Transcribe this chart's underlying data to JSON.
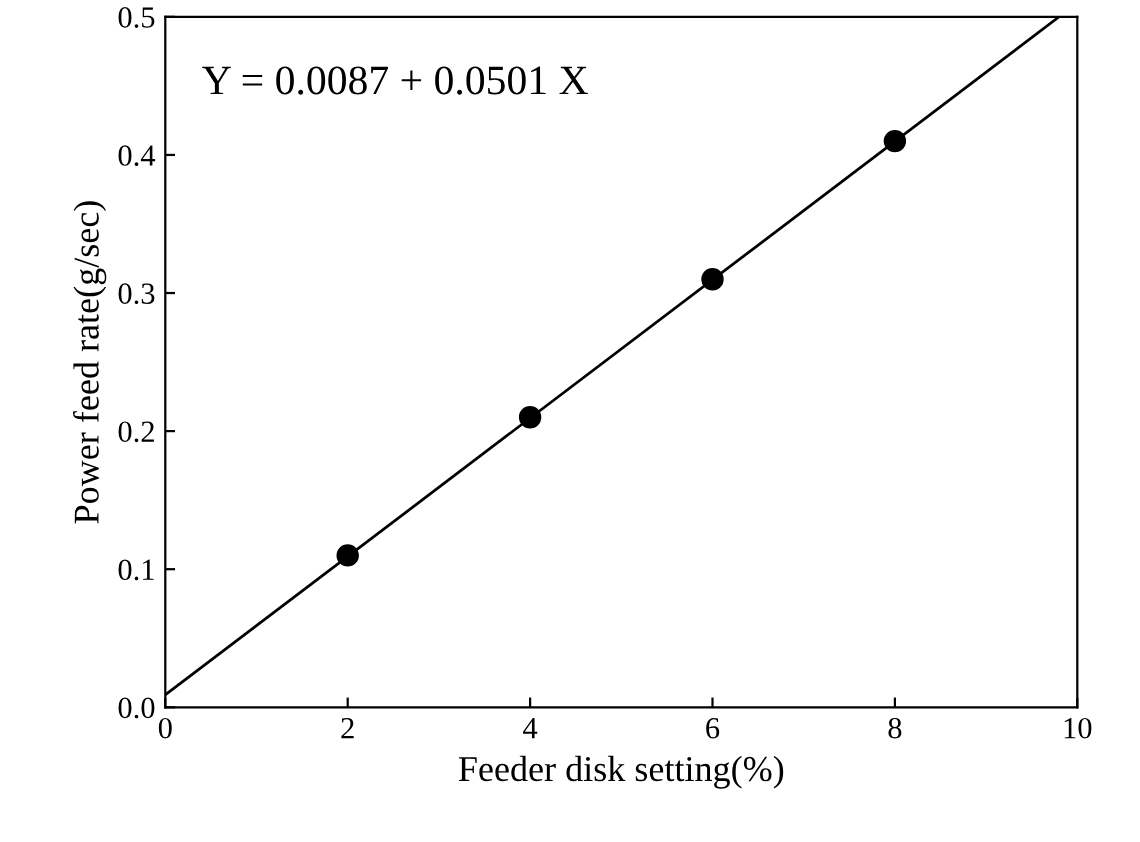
{
  "chart_data": {
    "type": "scatter",
    "xlabel": "Feeder disk setting(%)",
    "ylabel": "Power feed rate(g/sec)",
    "annotations": [
      "Y = 0.0087 + 0.0501 X"
    ],
    "series": [
      {
        "color": "#000000",
        "marker": "circle",
        "x": [
          2,
          4,
          6,
          8
        ],
        "values": [
          0.11,
          0.21,
          0.31,
          0.41
        ]
      },
      {
        "type": "line",
        "color": "#000000",
        "marker": "none",
        "x": [
          0,
          9.8
        ],
        "values": [
          0.009,
          0.5
        ]
      }
    ],
    "xlim": [
      0,
      10
    ],
    "xticks": [
      0,
      2,
      4,
      6,
      8,
      10
    ],
    "ylim": [
      0,
      0.5
    ],
    "yticks": [
      {
        "value": 0,
        "label": "0.0"
      },
      0.1,
      0.2,
      0.3,
      0.4,
      0.5
    ],
    "grid": false,
    "legend": false
  }
}
